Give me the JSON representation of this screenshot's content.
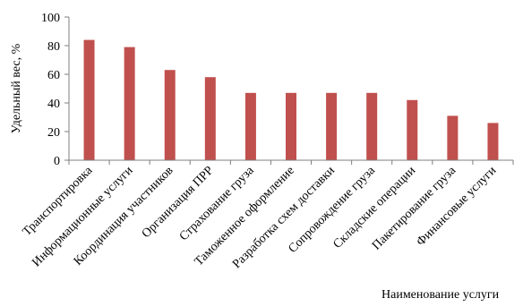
{
  "chart_data": {
    "type": "bar",
    "title": "",
    "xlabel": "Наименование услуги",
    "ylabel": "Удельный вес, %",
    "ylim": [
      0,
      100
    ],
    "yticks": [
      0,
      20,
      40,
      60,
      80,
      100
    ],
    "grid": false,
    "legend": "none",
    "bar_color": "#c0504d",
    "categories": [
      "Транспортировка",
      "Информационные услуги",
      "Координация участников",
      "Организация ПРР",
      "Страхование груза",
      "Таможенное оформление",
      "Разработка схем доставки",
      "Сопровождение груза",
      "Складские операции",
      "Пакетирование груза",
      "Финансовые услуги"
    ],
    "values": [
      84,
      79,
      63,
      58,
      47,
      47,
      47,
      47,
      42,
      31,
      26
    ]
  }
}
